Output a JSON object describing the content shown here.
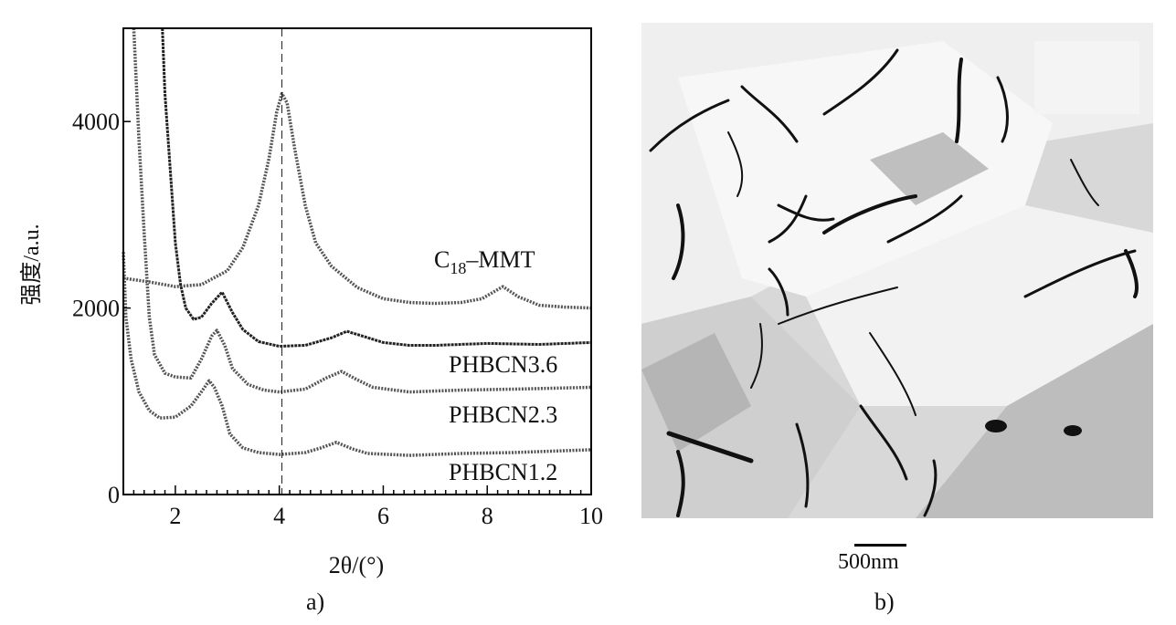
{
  "chart_data": {
    "type": "line",
    "xlabel": "2θ/(°)",
    "ylabel": "强度/a.u.",
    "xlim": [
      1,
      10
    ],
    "ylim": [
      0,
      5000
    ],
    "xticks": [
      2,
      4,
      6,
      8,
      10
    ],
    "yticks": [
      0,
      2000,
      4000
    ],
    "reference_line_x": 4.05,
    "grid": false,
    "series": [
      {
        "name": "C18-MMT",
        "label_main": "C",
        "label_sub": "18",
        "label_rest": "–MMT",
        "x": [
          1,
          1.5,
          2,
          2.5,
          3,
          3.3,
          3.6,
          3.8,
          3.95,
          4.05,
          4.15,
          4.3,
          4.5,
          4.7,
          5,
          5.5,
          6,
          6.5,
          7,
          7.5,
          7.9,
          8.3,
          8.6,
          9,
          9.5,
          10
        ],
        "y": [
          2320,
          2280,
          2230,
          2250,
          2400,
          2650,
          3100,
          3600,
          4100,
          4300,
          4200,
          3700,
          3100,
          2700,
          2450,
          2220,
          2100,
          2060,
          2050,
          2060,
          2100,
          2230,
          2120,
          2030,
          2010,
          2000
        ]
      },
      {
        "name": "PHBCN3.6",
        "x": [
          1.75,
          1.8,
          1.9,
          2,
          2.1,
          2.2,
          2.35,
          2.5,
          2.7,
          2.9,
          3.1,
          3.3,
          3.6,
          4,
          4.5,
          5,
          5.3,
          5.6,
          6,
          6.5,
          7,
          8,
          9,
          10
        ],
        "y": [
          5000,
          4300,
          3500,
          2700,
          2250,
          2000,
          1880,
          1900,
          2050,
          2170,
          1950,
          1770,
          1640,
          1590,
          1600,
          1680,
          1750,
          1700,
          1630,
          1600,
          1600,
          1620,
          1610,
          1630
        ]
      },
      {
        "name": "PHBCN2.3",
        "x": [
          1.2,
          1.3,
          1.4,
          1.5,
          1.6,
          1.8,
          2,
          2.3,
          2.5,
          2.7,
          2.8,
          2.95,
          3.1,
          3.4,
          3.7,
          4,
          4.5,
          4.9,
          5.2,
          5.5,
          5.8,
          6.5,
          7.5,
          8.5,
          10
        ],
        "y": [
          5000,
          3800,
          2800,
          1900,
          1500,
          1300,
          1260,
          1250,
          1450,
          1700,
          1760,
          1600,
          1350,
          1180,
          1120,
          1100,
          1130,
          1250,
          1320,
          1230,
          1150,
          1100,
          1120,
          1130,
          1150
        ]
      },
      {
        "name": "PHBCN1.2",
        "x": [
          1,
          1.05,
          1.15,
          1.3,
          1.5,
          1.7,
          2,
          2.3,
          2.5,
          2.65,
          2.75,
          2.9,
          3.05,
          3.3,
          3.6,
          4,
          4.5,
          4.8,
          5.1,
          5.4,
          5.7,
          6.5,
          7.5,
          8.5,
          10
        ],
        "y": [
          2600,
          1900,
          1450,
          1100,
          900,
          820,
          830,
          950,
          1100,
          1220,
          1150,
          950,
          650,
          500,
          450,
          430,
          450,
          500,
          560,
          490,
          440,
          420,
          440,
          450,
          480
        ]
      }
    ]
  },
  "captions": {
    "a": "a)",
    "b": "b)"
  },
  "image": {
    "scale_bar_label": "500nm"
  }
}
